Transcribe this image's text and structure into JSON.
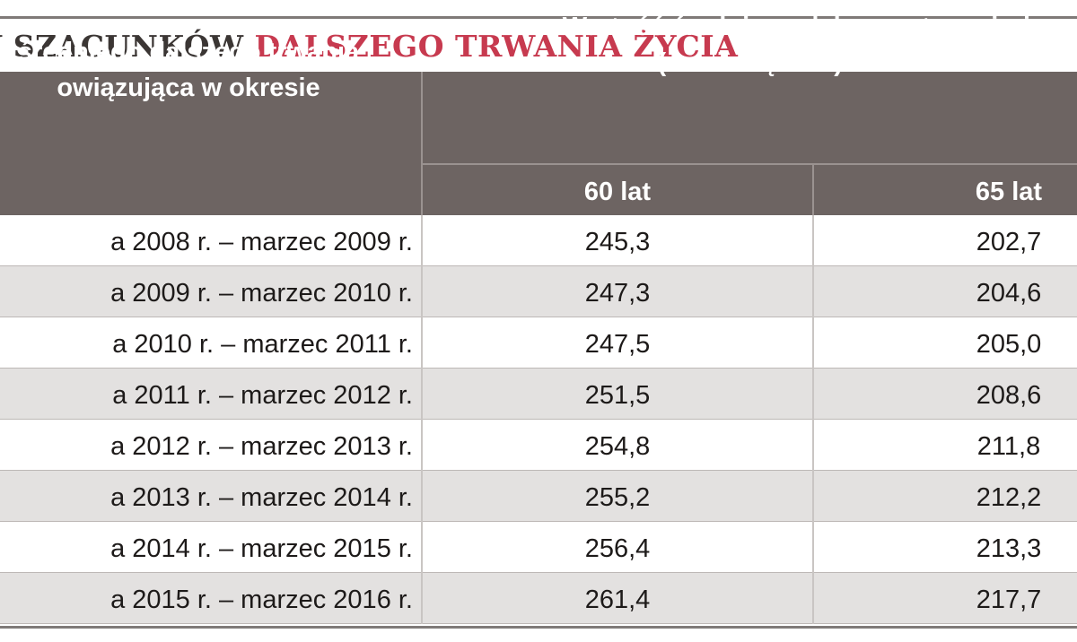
{
  "title": {
    "part1": "NY SZACUNKÓW ",
    "part2": "DALSZEGO TRWANIA ŻYCIA"
  },
  "colors": {
    "header_bg": "#6d6462",
    "accent_red": "#c73a4f",
    "row_alt": "#e3e1e0"
  },
  "chart_data": {
    "type": "table",
    "title": "NY SZACUNKÓW DALSZEGO TRWANIA ŻYCIA",
    "header_left_lines": [
      "średniego dalszego trwania",
      "owiązująca w okresie"
    ],
    "header_right_lines": [
      "Wartość średniego dalszego trwania życ",
      "(w miesiącach) dla wieku"
    ],
    "columns": [
      "60 lat",
      "65 lat"
    ],
    "rows": [
      {
        "period": "a 2008 r. – marzec 2009 r.",
        "v60": "245,3",
        "v65": "202,7"
      },
      {
        "period": "a 2009 r. – marzec 2010 r.",
        "v60": "247,3",
        "v65": "204,6"
      },
      {
        "period": "a 2010 r. – marzec 2011 r.",
        "v60": "247,5",
        "v65": "205,0"
      },
      {
        "period": "a 2011 r. – marzec 2012 r.",
        "v60": "251,5",
        "v65": "208,6"
      },
      {
        "period": "a 2012 r. – marzec 2013 r.",
        "v60": "254,8",
        "v65": "211,8"
      },
      {
        "period": "a 2013 r. – marzec 2014 r.",
        "v60": "255,2",
        "v65": "212,2"
      },
      {
        "period": "a 2014 r. – marzec 2015 r.",
        "v60": "256,4",
        "v65": "213,3"
      },
      {
        "period": "a 2015 r. – marzec 2016 r.",
        "v60": "261,4",
        "v65": "217,7"
      }
    ]
  }
}
